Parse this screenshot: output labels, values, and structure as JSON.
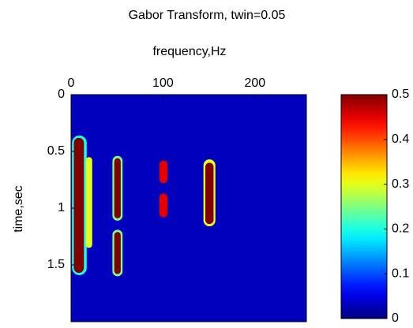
{
  "chart_data": {
    "type": "heatmap",
    "title": "Gabor Transform, twin=0.05",
    "xlabel": "frequency,Hz",
    "ylabel": "time,sec",
    "xlim": [
      0,
      256
    ],
    "xticks": [
      0,
      100,
      200
    ],
    "ylim": [
      0,
      2
    ],
    "yticks": [
      0,
      0.5,
      1,
      1.5
    ],
    "background": 0.03,
    "colormap": "jet",
    "clim": [
      0,
      0.5
    ],
    "cticks": [
      0,
      0.1,
      0.2,
      0.3,
      0.4,
      0.5
    ],
    "blobs": [
      {
        "x0": 1,
        "x1": 17,
        "t0": 0.36,
        "t1": 1.59,
        "value": 0.2
      },
      {
        "x0": 3,
        "x1": 14,
        "t0": 0.38,
        "t1": 1.57,
        "value": 0.5
      },
      {
        "x0": 16,
        "x1": 23,
        "t0": 0.55,
        "t1": 1.35,
        "value": 0.3
      },
      {
        "x0": 45,
        "x1": 56,
        "t0": 0.54,
        "t1": 1.11,
        "value": 0.25
      },
      {
        "x0": 47,
        "x1": 54,
        "t0": 0.56,
        "t1": 1.09,
        "value": 0.5
      },
      {
        "x0": 45,
        "x1": 56,
        "t0": 1.19,
        "t1": 1.6,
        "value": 0.25
      },
      {
        "x0": 47,
        "x1": 54,
        "t0": 1.21,
        "t1": 1.58,
        "value": 0.5
      },
      {
        "x0": 96,
        "x1": 105,
        "t0": 0.58,
        "t1": 0.78,
        "value": 0.45
      },
      {
        "x0": 96,
        "x1": 105,
        "t0": 0.87,
        "t1": 1.08,
        "value": 0.45
      },
      {
        "x0": 144,
        "x1": 157,
        "t0": 0.57,
        "t1": 1.16,
        "value": 0.3
      },
      {
        "x0": 146,
        "x1": 155,
        "t0": 0.6,
        "t1": 1.14,
        "value": 0.5
      }
    ]
  }
}
